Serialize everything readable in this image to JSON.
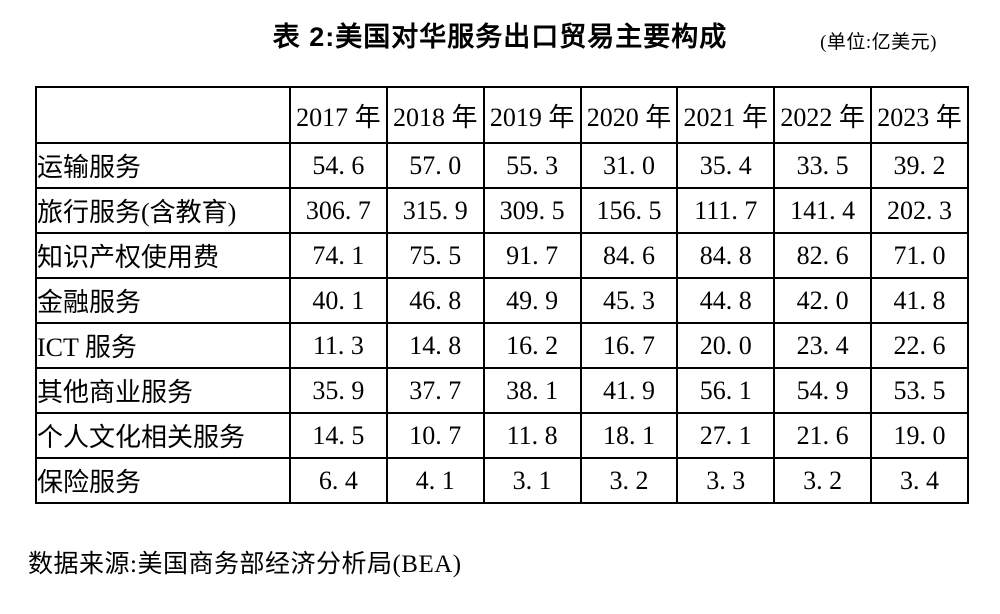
{
  "title": {
    "text": "表 2:美国对华服务出口贸易主要构成",
    "unit_note": "(单位:亿美元)"
  },
  "table": {
    "col_headers": [
      "2017 年",
      "2018 年",
      "2019 年",
      "2020 年",
      "2021 年",
      "2022 年",
      "2023 年"
    ],
    "rows": [
      {
        "label": "运输服务",
        "values": [
          "54.6",
          "57.0",
          "55.3",
          "31.0",
          "35.4",
          "33.5",
          "39.2"
        ]
      },
      {
        "label": "旅行服务(含教育)",
        "values": [
          "306.7",
          "315.9",
          "309.5",
          "156.5",
          "111.7",
          "141.4",
          "202.3"
        ]
      },
      {
        "label": "知识产权使用费",
        "values": [
          "74.1",
          "75.5",
          "91.7",
          "84.6",
          "84.8",
          "82.6",
          "71.0"
        ]
      },
      {
        "label": "金融服务",
        "values": [
          "40.1",
          "46.8",
          "49.9",
          "45.3",
          "44.8",
          "42.0",
          "41.8"
        ]
      },
      {
        "label": "ICT 服务",
        "values": [
          "11.3",
          "14.8",
          "16.2",
          "16.7",
          "20.0",
          "23.4",
          "22.6"
        ]
      },
      {
        "label": "其他商业服务",
        "values": [
          "35.9",
          "37.7",
          "38.1",
          "41.9",
          "56.1",
          "54.9",
          "53.5"
        ]
      },
      {
        "label": "个人文化相关服务",
        "values": [
          "14.5",
          "10.7",
          "11.8",
          "18.1",
          "27.1",
          "21.6",
          "19.0"
        ]
      },
      {
        "label": "保险服务",
        "values": [
          "6.4",
          "4.1",
          "3.1",
          "3.2",
          "3.3",
          "3.2",
          "3.4"
        ]
      }
    ]
  },
  "footer": {
    "source": "数据来源:美国商务部经济分析局(BEA)"
  }
}
